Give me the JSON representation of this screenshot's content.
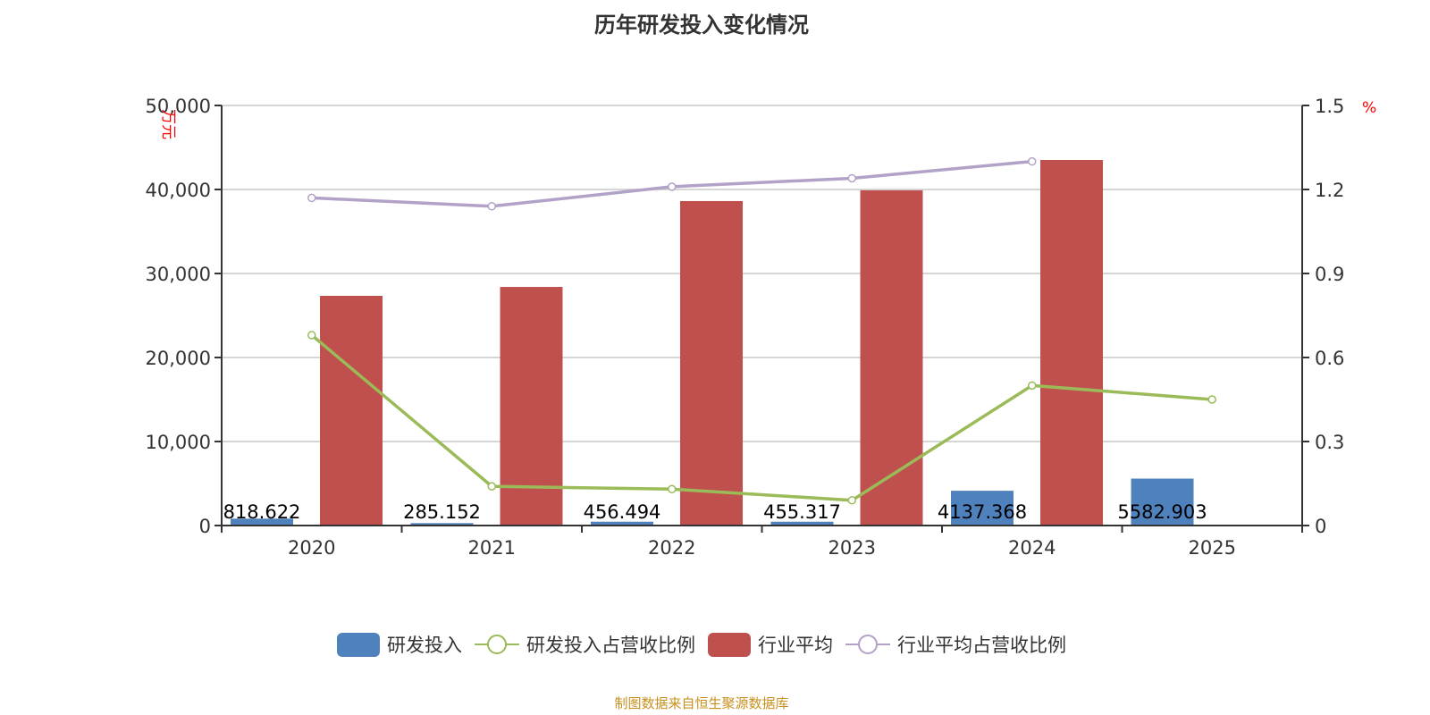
{
  "chart_data": {
    "type": "bar",
    "title": "历年研发投入变化情况",
    "categories": [
      "2020",
      "2021",
      "2022",
      "2023",
      "2024",
      "2025"
    ],
    "y_left": {
      "label": "万元",
      "min": 0,
      "max": 50000,
      "ticks": [
        "0",
        "10,000",
        "20,000",
        "30,000",
        "40,000",
        "50,000"
      ]
    },
    "y_right": {
      "label": "%",
      "min": 0,
      "max": 1.5,
      "ticks": [
        "0",
        "0.3",
        "0.6",
        "0.9",
        "1.2",
        "1.5"
      ]
    },
    "series": [
      {
        "name": "研发投入",
        "type": "bar",
        "axis": "left",
        "color": "#4f81bd",
        "values": [
          818.622,
          285.152,
          456.494,
          455.317,
          4137.368,
          5582.903
        ],
        "labels": [
          "818.622",
          "285.152",
          "456.494",
          "455.317",
          "4137.368",
          "5582.903"
        ]
      },
      {
        "name": "研发投入占营收比例",
        "type": "line",
        "axis": "right",
        "color": "#9bbb59",
        "values": [
          0.68,
          0.14,
          0.13,
          0.09,
          0.5,
          0.45
        ]
      },
      {
        "name": "行业平均",
        "type": "bar",
        "axis": "left",
        "color": "#c0504d",
        "values": [
          27340,
          28400,
          38620,
          39900,
          43510,
          null
        ]
      },
      {
        "name": "行业平均占营收比例",
        "type": "line",
        "axis": "right",
        "color": "#b3a2c7",
        "values": [
          1.17,
          1.14,
          1.21,
          1.24,
          1.3,
          null
        ]
      }
    ],
    "grid": true,
    "legend_position": "bottom"
  },
  "source": "制图数据来自恒生聚源数据库"
}
